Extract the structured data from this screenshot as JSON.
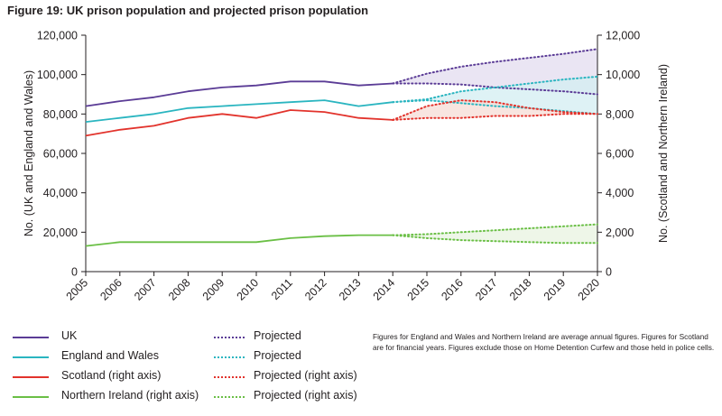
{
  "title": "Figure 19: UK prison population and projected prison population",
  "note": "Figures for England and Wales and Northern Ireland are average annual figures. Figures for Scotland are for financial years. Figures exclude those on Home Detention Curfew and those held in police cells.",
  "chart_data": {
    "type": "line",
    "title": "Figure 19: UK prison population and projected prison population",
    "xlabel": "",
    "ylabel_left": "No. (UK and England and Wales)",
    "ylabel_right": "No. (Scotland and Northern Ireland)",
    "x": [
      2005,
      2006,
      2007,
      2008,
      2009,
      2010,
      2011,
      2012,
      2013,
      2014,
      2015,
      2016,
      2017,
      2018,
      2019,
      2020
    ],
    "xlim": [
      2005,
      2020
    ],
    "ylim_left": [
      0,
      120000
    ],
    "ylim_right": [
      0,
      12000
    ],
    "yticks_left": [
      "0",
      "20,000",
      "40,000",
      "60,000",
      "80,000",
      "100,000",
      "120,000"
    ],
    "yticks_right": [
      "0",
      "2,000",
      "4,000",
      "6,000",
      "8,000",
      "10,000",
      "12,000"
    ],
    "grid": false,
    "legend_position": "bottom",
    "series": [
      {
        "name": "UK",
        "axis": "left",
        "color": "#5b3c96",
        "x": [
          2005,
          2006,
          2007,
          2008,
          2009,
          2010,
          2011,
          2012,
          2013,
          2014
        ],
        "values": [
          84000,
          86500,
          88500,
          91500,
          93500,
          94500,
          96500,
          96500,
          94500,
          95500
        ]
      },
      {
        "name": "England and Wales",
        "axis": "left",
        "color": "#2ab5c0",
        "x": [
          2005,
          2006,
          2007,
          2008,
          2009,
          2010,
          2011,
          2012,
          2013,
          2014
        ],
        "values": [
          76000,
          78000,
          80000,
          83000,
          84000,
          85000,
          86000,
          87000,
          84000,
          86000
        ]
      },
      {
        "name": "Scotland (right axis)",
        "axis": "right",
        "color": "#e2332c",
        "x": [
          2005,
          2006,
          2007,
          2008,
          2009,
          2010,
          2011,
          2012,
          2013,
          2014
        ],
        "values": [
          6900,
          7200,
          7400,
          7800,
          8000,
          7800,
          8200,
          8100,
          7800,
          7700
        ]
      },
      {
        "name": "Northern Ireland (right axis)",
        "axis": "right",
        "color": "#6abf45",
        "x": [
          2005,
          2006,
          2007,
          2008,
          2009,
          2010,
          2011,
          2012,
          2013,
          2014
        ],
        "values": [
          1300,
          1500,
          1500,
          1500,
          1500,
          1500,
          1700,
          1800,
          1850,
          1850
        ]
      }
    ],
    "projections": [
      {
        "name": "Projected",
        "of": "UK",
        "axis": "left",
        "color": "#5b3c96",
        "fill": "#e3dcef",
        "x": [
          2014,
          2015,
          2016,
          2017,
          2018,
          2019,
          2020
        ],
        "upper": [
          95500,
          100500,
          104000,
          106500,
          108500,
          110500,
          113000
        ],
        "lower": [
          95500,
          95500,
          95000,
          93500,
          92500,
          91500,
          90000
        ]
      },
      {
        "name": "Projected",
        "of": "England and Wales",
        "axis": "left",
        "color": "#2ab5c0",
        "fill": "#d3eef1",
        "x": [
          2014,
          2015,
          2016,
          2017,
          2018,
          2019,
          2020
        ],
        "upper": [
          86000,
          87500,
          91500,
          93500,
          95500,
          97500,
          99000
        ],
        "lower": [
          86000,
          87000,
          85500,
          84000,
          83000,
          81500,
          80000
        ]
      },
      {
        "name": "Projected (right axis)",
        "of": "Scotland (right axis)",
        "axis": "right",
        "color": "#e2332c",
        "fill": "#f6dcd6",
        "x": [
          2014,
          2015,
          2016,
          2017,
          2018,
          2019,
          2020
        ],
        "upper": [
          7700,
          8400,
          8700,
          8600,
          8300,
          8100,
          8000
        ],
        "lower": [
          7700,
          7800,
          7800,
          7900,
          7900,
          8000,
          8000
        ]
      },
      {
        "name": "Projected (right axis)",
        "of": "Northern Ireland (right axis)",
        "axis": "right",
        "color": "#6abf45",
        "fill": "#e8f3e0",
        "x": [
          2014,
          2015,
          2016,
          2017,
          2018,
          2019,
          2020
        ],
        "upper": [
          1850,
          1900,
          2000,
          2100,
          2200,
          2300,
          2400
        ],
        "lower": [
          1850,
          1700,
          1600,
          1550,
          1500,
          1450,
          1450
        ]
      }
    ]
  },
  "legend": [
    {
      "label": "UK",
      "color": "#5b3c96",
      "style": "solid"
    },
    {
      "label": "Projected",
      "color": "#5b3c96",
      "style": "dotted"
    },
    {
      "label": "England and Wales",
      "color": "#2ab5c0",
      "style": "solid"
    },
    {
      "label": "Projected",
      "color": "#2ab5c0",
      "style": "dotted"
    },
    {
      "label": "Scotland (right axis)",
      "color": "#e2332c",
      "style": "solid"
    },
    {
      "label": "Projected (right axis)",
      "color": "#e2332c",
      "style": "dotted"
    },
    {
      "label": "Northern Ireland (right axis)",
      "color": "#6abf45",
      "style": "solid"
    },
    {
      "label": "Projected (right axis)",
      "color": "#6abf45",
      "style": "dotted"
    }
  ]
}
